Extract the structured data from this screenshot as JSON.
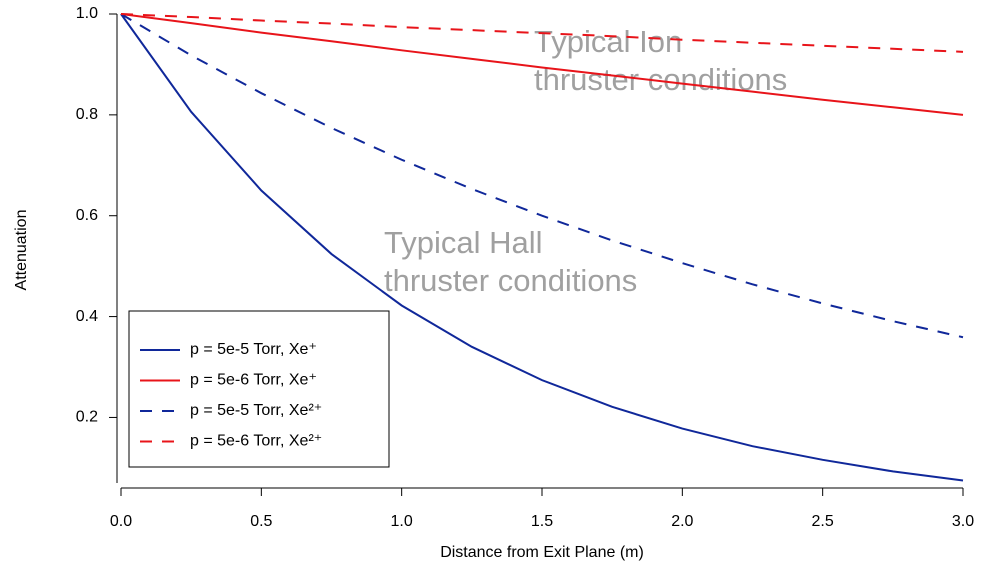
{
  "chart_data": {
    "type": "line",
    "x_label": "Distance from Exit Plane (m)",
    "y_label": "Attenuation",
    "x": [
      0,
      0.25,
      0.5,
      0.75,
      1,
      1.25,
      1.5,
      1.75,
      2,
      2.25,
      2.5,
      2.75,
      3
    ],
    "series": [
      {
        "name": "p = 5e-5 Torr, Xe⁺",
        "color": "#10289a",
        "line_style": "solid",
        "values": [
          1,
          0.806,
          0.65,
          0.524,
          0.422,
          0.34,
          0.274,
          0.221,
          0.178,
          0.143,
          0.116,
          0.093,
          0.075
        ]
      },
      {
        "name": "p = 5e-6 Torr, Xe⁺",
        "color": "#e8141a",
        "line_style": "solid",
        "values": [
          1,
          0.982,
          0.963,
          0.946,
          0.928,
          0.911,
          0.894,
          0.878,
          0.862,
          0.846,
          0.83,
          0.815,
          0.8
        ]
      },
      {
        "name": "p = 5e-5 Torr, Xe²⁺",
        "color": "#10289a",
        "line_style": "dashed",
        "values": [
          1,
          0.918,
          0.843,
          0.774,
          0.711,
          0.653,
          0.6,
          0.551,
          0.506,
          0.464,
          0.426,
          0.391,
          0.359
        ]
      },
      {
        "name": "p = 5e-6 Torr, Xe²⁺",
        "color": "#e8141a",
        "line_style": "dashed",
        "values": [
          1,
          0.994,
          0.987,
          0.981,
          0.974,
          0.968,
          0.962,
          0.956,
          0.949,
          0.943,
          0.937,
          0.931,
          0.925
        ]
      }
    ],
    "annotations": [
      [
        "Typical Ion",
        "thruster conditions"
      ],
      [
        "Typical Hall",
        "thruster conditions"
      ]
    ],
    "annotation_color": "#a0a0a0",
    "xlim": [
      0,
      3
    ],
    "xticks": [
      {
        "value": 0,
        "label": "0.0"
      },
      0.5,
      {
        "value": 1,
        "label": "1.0"
      },
      1.5,
      {
        "value": 2,
        "label": "2.0"
      },
      2.5,
      {
        "value": 3,
        "label": "3.0"
      }
    ],
    "ylim": [
      0.07,
      1
    ],
    "yticks": [
      0.2,
      0.4,
      0.6,
      0.8,
      {
        "value": 1,
        "label": "1.0"
      }
    ],
    "legend": "lower left",
    "grid": false
  }
}
